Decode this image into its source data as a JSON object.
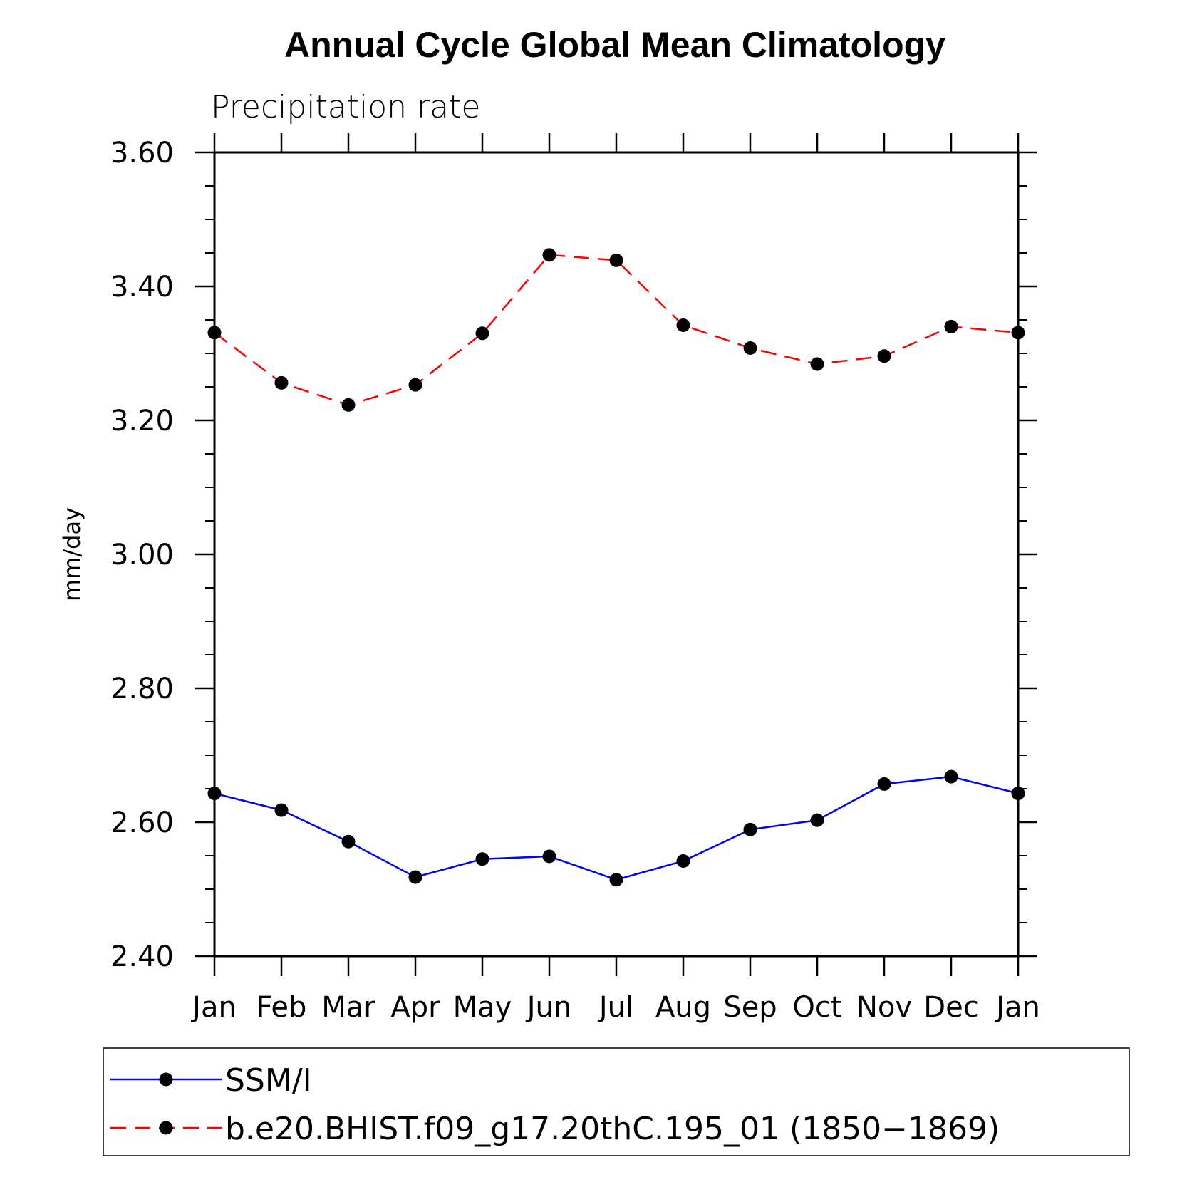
{
  "chart_data": {
    "type": "line",
    "title": "Annual Cycle Global Mean Climatology",
    "subtitle": "Precipitation rate",
    "xlabel": "",
    "ylabel": "mm/day",
    "categories": [
      "Jan",
      "Feb",
      "Mar",
      "Apr",
      "May",
      "Jun",
      "Jul",
      "Aug",
      "Sep",
      "Oct",
      "Nov",
      "Dec",
      "Jan"
    ],
    "ylim": [
      2.4,
      3.6
    ],
    "yticks": [
      "2.40",
      "2.60",
      "2.80",
      "3.00",
      "3.20",
      "3.40",
      "3.60"
    ],
    "grid": false,
    "legend_position": "bottom",
    "series": [
      {
        "name": "SSM/I",
        "color": "#0000ff",
        "line_style": "solid",
        "marker": "filled-circle",
        "values": [
          2.643,
          2.618,
          2.571,
          2.518,
          2.545,
          2.549,
          2.514,
          2.542,
          2.589,
          2.603,
          2.657,
          2.668,
          2.643
        ]
      },
      {
        "name": "b.e20.BHIST.f09_g17.20thC.195_01 (1850−1869)",
        "color": "#ff0000",
        "line_style": "dashed",
        "marker": "filled-circle",
        "values": [
          3.331,
          3.256,
          3.223,
          3.253,
          3.33,
          3.447,
          3.439,
          3.342,
          3.308,
          3.284,
          3.296,
          3.34,
          3.331
        ]
      }
    ]
  }
}
